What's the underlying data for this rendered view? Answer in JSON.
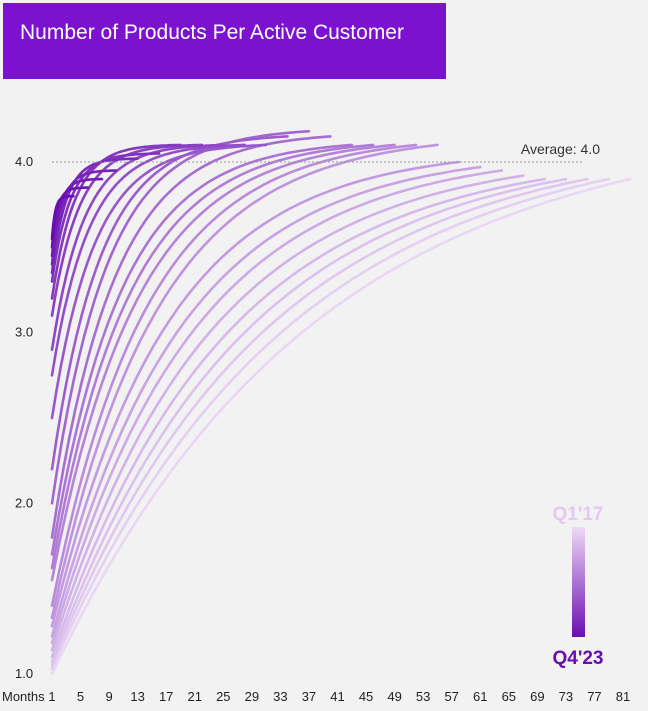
{
  "chart_data": {
    "type": "line",
    "title": "Number of Products Per Active Customer",
    "xlabel": "Months",
    "x_ticks": [
      1,
      5,
      9,
      13,
      17,
      21,
      25,
      29,
      33,
      37,
      41,
      45,
      49,
      53,
      57,
      61,
      65,
      69,
      73,
      77,
      81
    ],
    "y_ticks": [
      "1.0",
      "2.0",
      "3.0",
      "4.0"
    ],
    "xlim": [
      1,
      81
    ],
    "ylim": [
      1.0,
      4.0
    ],
    "average_label": "Average: 4.0",
    "average_value": 4.0,
    "legend": {
      "start_label": "Q1'17",
      "end_label": "Q4'23"
    },
    "colors": {
      "darkest": "#6a0eb0",
      "lightest": "#e8d4f3",
      "title_bg": "#7c12cf",
      "average_line": "#999999"
    },
    "cohort_count": 28,
    "cohort_series": [
      {
        "start_y": 1.0,
        "end_month": 82,
        "end_y": 3.9
      },
      {
        "start_y": 1.03,
        "end_month": 79,
        "end_y": 3.9
      },
      {
        "start_y": 1.05,
        "end_month": 76,
        "end_y": 3.9
      },
      {
        "start_y": 1.07,
        "end_month": 73,
        "end_y": 3.9
      },
      {
        "start_y": 1.1,
        "end_month": 70,
        "end_y": 3.9
      },
      {
        "start_y": 1.14,
        "end_month": 67,
        "end_y": 3.92
      },
      {
        "start_y": 1.18,
        "end_month": 64,
        "end_y": 3.95
      },
      {
        "start_y": 1.22,
        "end_month": 61,
        "end_y": 3.97
      },
      {
        "start_y": 1.28,
        "end_month": 58,
        "end_y": 4.0
      },
      {
        "start_y": 1.33,
        "end_month": 55,
        "end_y": 4.1
      },
      {
        "start_y": 1.4,
        "end_month": 52,
        "end_y": 4.1
      },
      {
        "start_y": 1.55,
        "end_month": 49,
        "end_y": 4.1
      },
      {
        "start_y": 1.62,
        "end_month": 46,
        "end_y": 4.1
      },
      {
        "start_y": 1.7,
        "end_month": 43,
        "end_y": 4.1
      },
      {
        "start_y": 1.8,
        "end_month": 40,
        "end_y": 4.15
      },
      {
        "start_y": 2.0,
        "end_month": 37,
        "end_y": 4.18
      },
      {
        "start_y": 2.2,
        "end_month": 34,
        "end_y": 4.15
      },
      {
        "start_y": 2.5,
        "end_month": 31,
        "end_y": 4.1
      },
      {
        "start_y": 2.75,
        "end_month": 28,
        "end_y": 4.1
      },
      {
        "start_y": 2.9,
        "end_month": 25,
        "end_y": 4.1
      },
      {
        "start_y": 3.1,
        "end_month": 22,
        "end_y": 4.1
      },
      {
        "start_y": 3.2,
        "end_month": 19,
        "end_y": 4.1
      },
      {
        "start_y": 3.3,
        "end_month": 16,
        "end_y": 4.05
      },
      {
        "start_y": 3.35,
        "end_month": 13,
        "end_y": 4.02
      },
      {
        "start_y": 3.4,
        "end_month": 10,
        "end_y": 3.95
      },
      {
        "start_y": 3.45,
        "end_month": 8,
        "end_y": 3.9
      },
      {
        "start_y": 3.5,
        "end_month": 6,
        "end_y": 3.85
      },
      {
        "start_y": 3.55,
        "end_month": 4,
        "end_y": 3.8
      }
    ]
  }
}
